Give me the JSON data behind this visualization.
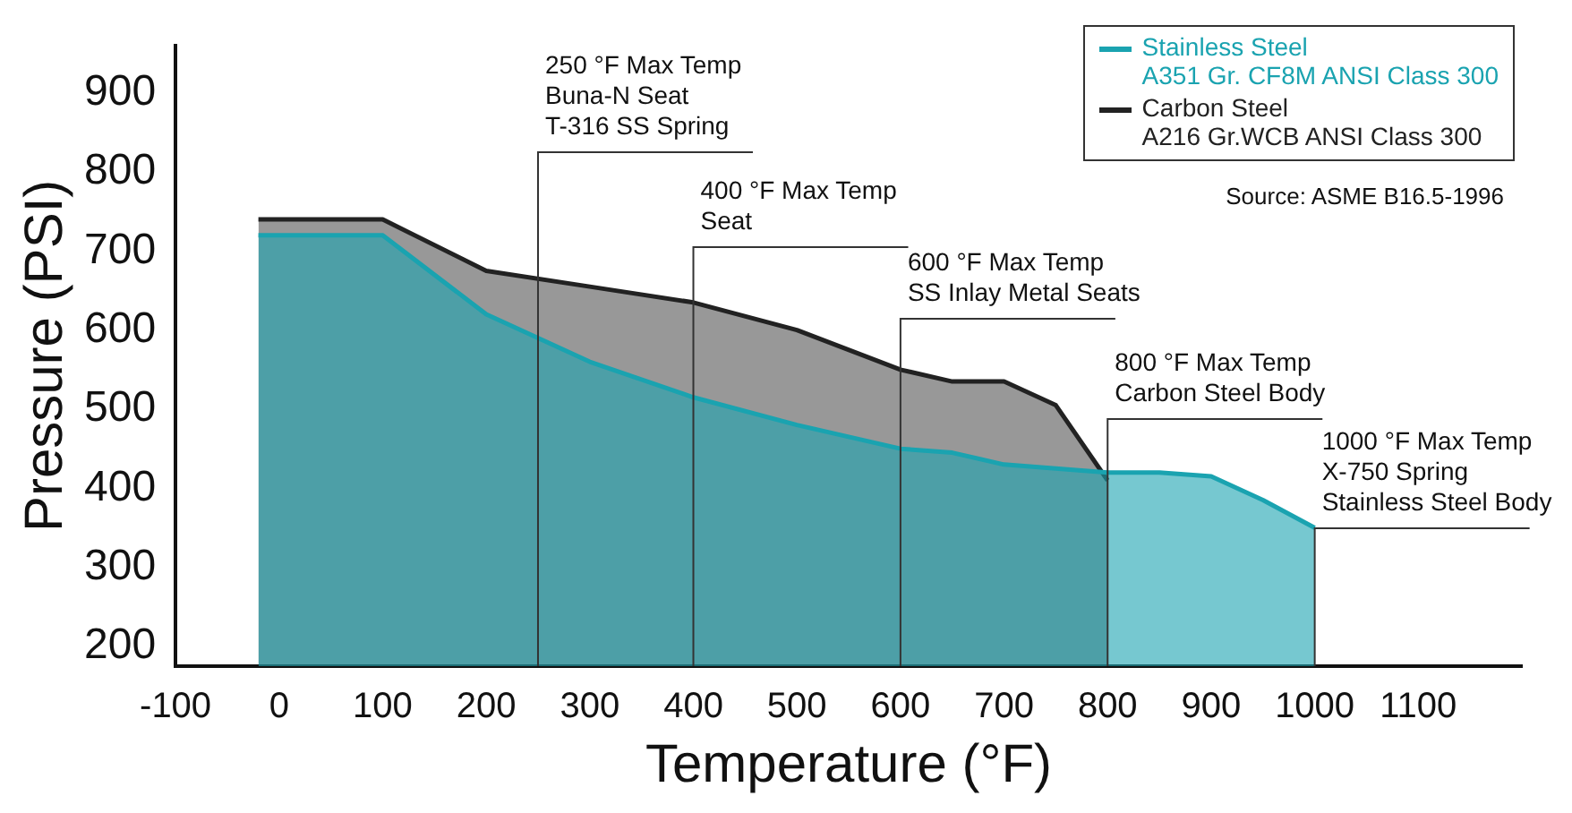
{
  "chart_data": {
    "type": "area",
    "xlabel": "Temperature (°F)",
    "ylabel": "Pressure (PSI)",
    "xlim": [
      -100,
      1200
    ],
    "xticks": [
      -100,
      0,
      100,
      200,
      300,
      400,
      500,
      600,
      700,
      800,
      900,
      1000,
      1100
    ],
    "ylim": [
      175,
      960
    ],
    "yticks": [
      200,
      300,
      400,
      500,
      600,
      700,
      800,
      900
    ],
    "grid": false,
    "legend": "top right",
    "series": [
      {
        "name": "Stainless Steel\nA351 Gr. CF8M ANSI Class 300",
        "color": "#1aa3b0",
        "x": [
          -20,
          100,
          200,
          300,
          400,
          500,
          600,
          650,
          700,
          750,
          800,
          850,
          900,
          950,
          1000
        ],
        "values": [
          720,
          720,
          620,
          560,
          515,
          480,
          450,
          445,
          430,
          425,
          420,
          420,
          415,
          385,
          350
        ]
      },
      {
        "name": "Carbon Steel\nA216 Gr.WCB ANSI Class 300",
        "color": "#222222",
        "x": [
          -20,
          100,
          200,
          300,
          400,
          500,
          600,
          650,
          700,
          750,
          800
        ],
        "values": [
          740,
          740,
          675,
          655,
          635,
          600,
          550,
          535,
          535,
          505,
          410
        ]
      }
    ],
    "ref_lines": [
      {
        "axis": "x",
        "value": 250,
        "label": "250 °F Max Temp\nBuna-N Seat\nT-316 SS Spring",
        "color": "#333333"
      },
      {
        "axis": "x",
        "value": 400,
        "label": "400 °F Max Temp\nSeat",
        "color": "#333333"
      },
      {
        "axis": "x",
        "value": 600,
        "label": "600 °F Max Temp\nSS Inlay Metal Seats",
        "color": "#333333"
      },
      {
        "axis": "x",
        "value": 800,
        "label": "800 °F Max Temp\nCarbon Steel Body",
        "color": "#333333"
      },
      {
        "axis": "x",
        "value": 1000,
        "label": "1000 °F Max Temp\nX-750 Spring\nStainless Steel Body",
        "color": "#333333"
      }
    ],
    "annotations": [
      "Source: ASME B16.5-1996"
    ]
  }
}
